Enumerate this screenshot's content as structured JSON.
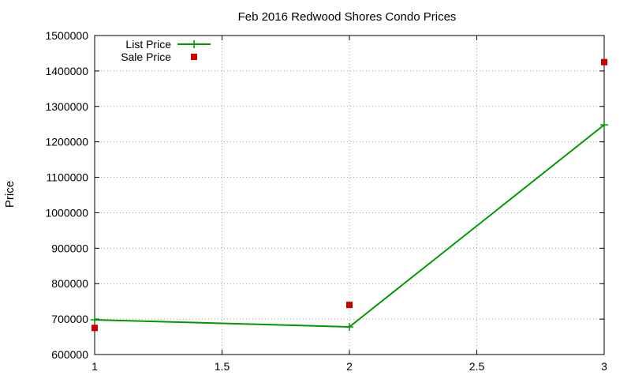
{
  "chart_data": {
    "type": "line",
    "title": "Feb 2016 Redwood Shores Condo Prices",
    "xlabel": "",
    "ylabel": "Price",
    "xlim": [
      1,
      3
    ],
    "ylim": [
      600000,
      1500000
    ],
    "x_ticks": [
      "1",
      "1.5",
      "2",
      "2.5",
      "3"
    ],
    "y_ticks": [
      "600000",
      "700000",
      "800000",
      "900000",
      "1000000",
      "1100000",
      "1200000",
      "1300000",
      "1400000",
      "1500000"
    ],
    "grid": true,
    "legend_position": "top-left",
    "series": [
      {
        "name": "List Price",
        "style": "linespoints",
        "marker": "plus",
        "color": "#009900",
        "x": [
          1,
          2,
          3
        ],
        "y": [
          698000,
          678000,
          1248000
        ]
      },
      {
        "name": "Sale Price",
        "style": "points",
        "marker": "square",
        "color": "#cc0000",
        "x": [
          1,
          2,
          3
        ],
        "y": [
          675000,
          740000,
          1425000
        ]
      }
    ]
  }
}
